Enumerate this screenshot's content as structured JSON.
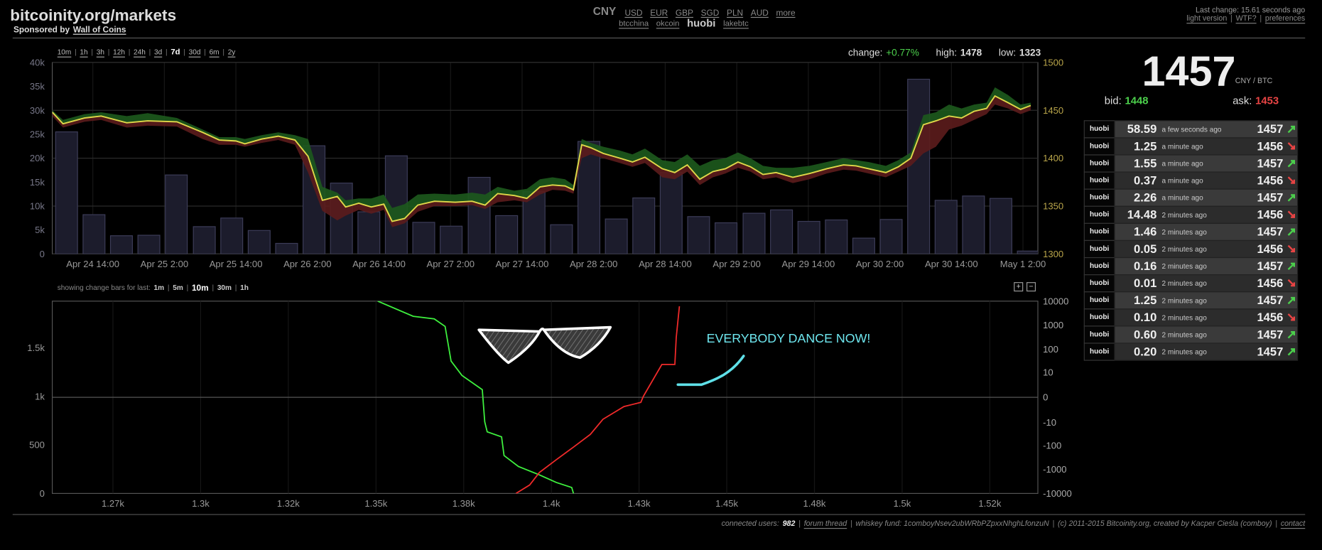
{
  "header": {
    "title": "bitcoinity.org/markets",
    "sponsored_by": "Sponsored by",
    "sponsor": "Wall of Coins",
    "currency": "CNY",
    "currencies": [
      "USD",
      "EUR",
      "GBP",
      "SGD",
      "PLN",
      "AUD",
      "more"
    ],
    "exchanges": [
      "btcchina",
      "okcoin",
      "huobi",
      "lakebtc"
    ],
    "active_exchange": 2,
    "last_change": "Last change: 15.61 seconds ago",
    "links": [
      "light version",
      "WTF?",
      "preferences"
    ],
    "separator": "|"
  },
  "ranges": {
    "options": [
      "10m",
      "1h",
      "3h",
      "12h",
      "24h",
      "3d",
      "7d",
      "30d",
      "6m",
      "2y"
    ],
    "active": 6
  },
  "stats": {
    "change_label": "change:",
    "change": "+0.77%",
    "high_label": "high:",
    "high": "1478",
    "low_label": "low:",
    "low": "1323"
  },
  "ticker": {
    "price": "1457",
    "unit": "CNY / BTC",
    "bid_label": "bid:",
    "bid": "1448",
    "ask_label": "ask:",
    "ask": "1453"
  },
  "trades": [
    {
      "exchange": "huobi",
      "amount": "58.59",
      "time": "a few seconds ago",
      "price": "1457",
      "direction": "up"
    },
    {
      "exchange": "huobi",
      "amount": "1.25",
      "time": "a minute ago",
      "price": "1456",
      "direction": "down"
    },
    {
      "exchange": "huobi",
      "amount": "1.55",
      "time": "a minute ago",
      "price": "1457",
      "direction": "up"
    },
    {
      "exchange": "huobi",
      "amount": "0.37",
      "time": "a minute ago",
      "price": "1456",
      "direction": "down"
    },
    {
      "exchange": "huobi",
      "amount": "2.26",
      "time": "a minute ago",
      "price": "1457",
      "direction": "up"
    },
    {
      "exchange": "huobi",
      "amount": "14.48",
      "time": "2 minutes ago",
      "price": "1456",
      "direction": "down"
    },
    {
      "exchange": "huobi",
      "amount": "1.46",
      "time": "2 minutes ago",
      "price": "1457",
      "direction": "up"
    },
    {
      "exchange": "huobi",
      "amount": "0.05",
      "time": "2 minutes ago",
      "price": "1456",
      "direction": "down"
    },
    {
      "exchange": "huobi",
      "amount": "0.16",
      "time": "2 minutes ago",
      "price": "1457",
      "direction": "up"
    },
    {
      "exchange": "huobi",
      "amount": "0.01",
      "time": "2 minutes ago",
      "price": "1456",
      "direction": "down"
    },
    {
      "exchange": "huobi",
      "amount": "1.25",
      "time": "2 minutes ago",
      "price": "1457",
      "direction": "up"
    },
    {
      "exchange": "huobi",
      "amount": "0.10",
      "time": "2 minutes ago",
      "price": "1456",
      "direction": "down"
    },
    {
      "exchange": "huobi",
      "amount": "0.60",
      "time": "2 minutes ago",
      "price": "1457",
      "direction": "up"
    },
    {
      "exchange": "huobi",
      "amount": "0.20",
      "time": "2 minutes ago",
      "price": "1457",
      "direction": "up"
    }
  ],
  "chart_data": [
    {
      "type": "combo",
      "grid": true,
      "xlim": [
        7.2,
        172.5
      ],
      "xticks": [
        {
          "value": 14,
          "label": "Apr 24 14:00"
        },
        {
          "value": 26,
          "label": "Apr 25 2:00"
        },
        {
          "value": 38,
          "label": "Apr 25 14:00"
        },
        {
          "value": 50,
          "label": "Apr 26 2:00"
        },
        {
          "value": 62,
          "label": "Apr 26 14:00"
        },
        {
          "value": 74,
          "label": "Apr 27 2:00"
        },
        {
          "value": 86,
          "label": "Apr 27 14:00"
        },
        {
          "value": 98,
          "label": "Apr 28 2:00"
        },
        {
          "value": 110,
          "label": "Apr 28 14:00"
        },
        {
          "value": 122,
          "label": "Apr 29 2:00"
        },
        {
          "value": 134,
          "label": "Apr 29 14:00"
        },
        {
          "value": 146,
          "label": "Apr 30 2:00"
        },
        {
          "value": 158,
          "label": "Apr 30 14:00"
        },
        {
          "value": 170,
          "label": "May 1 2:00"
        }
      ],
      "ylim": [
        0,
        40000
      ],
      "yticks": [
        0,
        {
          "value": 5000,
          "label": "5k"
        },
        {
          "value": 10000,
          "label": "10k"
        },
        {
          "value": 15000,
          "label": "15k"
        },
        {
          "value": 20000,
          "label": "20k"
        },
        {
          "value": 25000,
          "label": "25k"
        },
        {
          "value": 30000,
          "label": "30k"
        },
        {
          "value": 35000,
          "label": "35k"
        },
        {
          "value": 40000,
          "label": "40k"
        }
      ],
      "y2lim": [
        1300,
        1500
      ],
      "y2ticks": [
        1300,
        1350,
        1400,
        1450,
        1500
      ],
      "x": [
        7.2,
        9.0,
        12.6,
        15.4,
        19.7,
        23.2,
        28.1,
        32.4,
        35.2,
        38.0,
        39.5,
        42.3,
        45.1,
        47.9,
        50.1,
        52.5,
        55.0,
        56.4,
        58.6,
        60.7,
        62.8,
        64.2,
        66.3,
        68.5,
        71.3,
        74.8,
        77.6,
        79.8,
        81.9,
        84.7,
        86.8,
        89.0,
        91.1,
        93.2,
        94.6,
        96.0,
        97.5,
        99.6,
        102.4,
        104.5,
        106.6,
        109.5,
        111.6,
        113.7,
        115.8,
        118.0,
        120.1,
        122.2,
        124.3,
        126.4,
        128.6,
        131.4,
        134.2,
        137.1,
        139.9,
        142.0,
        144.1,
        147.0,
        149.1,
        151.2,
        153.3,
        155.4,
        157.6,
        159.7,
        161.8,
        163.9,
        165.3,
        167.5,
        169.6,
        171.3
      ],
      "series": [
        {
          "type": "bar",
          "color": "#1c1c2c",
          "x": [
            9.6,
            14.2,
            18.8,
            23.4,
            28.0,
            32.7,
            37.3,
            41.9,
            46.5,
            51.1,
            55.7,
            60.3,
            64.9,
            69.5,
            74.1,
            78.8,
            83.4,
            88.0,
            92.6,
            97.2,
            101.8,
            106.4,
            111.0,
            115.6,
            120.2,
            124.9,
            129.5,
            134.1,
            138.7,
            143.3,
            147.9,
            152.5,
            157.1,
            161.7,
            166.3,
            170.9
          ],
          "values": [
            25500,
            8200,
            3800,
            3900,
            16500,
            5700,
            7500,
            4900,
            2200,
            22600,
            14800,
            8800,
            20500,
            6600,
            5800,
            16000,
            8000,
            13000,
            6100,
            23500,
            7300,
            11700,
            17000,
            7800,
            6500,
            8500,
            9200,
            6800,
            7100,
            3300,
            7200,
            36500,
            11200,
            12100,
            11600,
            600
          ]
        },
        {
          "type": "band",
          "axis": "y2",
          "color": "#1d5a1d",
          "values": [
            1450,
            1440,
            1446,
            1448,
            1444,
            1447,
            1442,
            1430,
            1422,
            1422,
            1420,
            1424,
            1427,
            1424,
            1420,
            1370,
            1364,
            1356,
            1358,
            1358,
            1362,
            1348,
            1352,
            1362,
            1363,
            1362,
            1364,
            1362,
            1370,
            1366,
            1368,
            1378,
            1380,
            1378,
            1372,
            1420,
            1416,
            1412,
            1408,
            1404,
            1410,
            1398,
            1396,
            1404,
            1392,
            1398,
            1400,
            1406,
            1400,
            1392,
            1390,
            1390,
            1392,
            1396,
            1400,
            1398,
            1396,
            1392,
            1398,
            1406,
            1445,
            1448,
            1456,
            1452,
            1456,
            1458,
            1474,
            1466,
            1456,
            1458
          ]
        },
        {
          "type": "band",
          "axis": "y2",
          "color": "#5c1c1c",
          "values": [
            1444,
            1432,
            1438,
            1440,
            1432,
            1434,
            1433,
            1420,
            1414,
            1414,
            1412,
            1416,
            1419,
            1414,
            1385,
            1345,
            1335,
            1340,
            1346,
            1342,
            1346,
            1328,
            1332,
            1344,
            1350,
            1350,
            1351,
            1347,
            1354,
            1356,
            1354,
            1362,
            1367,
            1366,
            1363,
            1400,
            1404,
            1400,
            1395,
            1391,
            1395,
            1380,
            1378,
            1386,
            1372,
            1380,
            1384,
            1390,
            1386,
            1378,
            1380,
            1374,
            1378,
            1384,
            1388,
            1387,
            1384,
            1380,
            1386,
            1392,
            1405,
            1412,
            1430,
            1434,
            1440,
            1446,
            1456,
            1452,
            1446,
            1450
          ]
        },
        {
          "type": "line",
          "axis": "y2",
          "color": "#e0d84a",
          "values": [
            1448,
            1436,
            1442,
            1444,
            1437,
            1439,
            1438,
            1427,
            1419,
            1418,
            1415,
            1420,
            1423,
            1419,
            1402,
            1356,
            1360,
            1349,
            1353,
            1349,
            1352,
            1334,
            1337,
            1351,
            1355,
            1354,
            1355,
            1351,
            1363,
            1361,
            1358,
            1370,
            1372,
            1371,
            1367,
            1414,
            1411,
            1405,
            1400,
            1396,
            1401,
            1389,
            1385,
            1393,
            1378,
            1386,
            1389,
            1396,
            1391,
            1383,
            1385,
            1380,
            1384,
            1389,
            1393,
            1392,
            1389,
            1385,
            1391,
            1400,
            1435,
            1439,
            1444,
            1442,
            1449,
            1452,
            1465,
            1458,
            1451,
            1455
          ]
        }
      ]
    },
    {
      "type": "depth",
      "grid": true,
      "zero_line": true,
      "y2scale": "symlog",
      "xlim": [
        1257.7,
        1538.7
      ],
      "xticks": [
        {
          "value": 1275,
          "label": "1.27k"
        },
        {
          "value": 1300,
          "label": "1.3k"
        },
        {
          "value": 1325,
          "label": "1.32k"
        },
        {
          "value": 1350,
          "label": "1.35k"
        },
        {
          "value": 1375,
          "label": "1.38k"
        },
        {
          "value": 1400,
          "label": "1.4k"
        },
        {
          "value": 1425,
          "label": "1.43k"
        },
        {
          "value": 1450,
          "label": "1.45k"
        },
        {
          "value": 1475,
          "label": "1.48k"
        },
        {
          "value": 1500,
          "label": "1.5k"
        },
        {
          "value": 1525,
          "label": "1.52k"
        }
      ],
      "ylim": [
        0,
        1983
      ],
      "yticks": [
        0,
        500,
        {
          "value": 1000,
          "label": "1k"
        },
        {
          "value": 1500,
          "label": "1.5k"
        }
      ],
      "y2lim": [
        -10000,
        10000
      ],
      "y2ticks": [
        -10000,
        -1000,
        -100,
        -10,
        0,
        10,
        100,
        1000,
        10000
      ],
      "annotation": "EVERYBODY DANCE NOW!",
      "series": [
        {
          "type": "line",
          "color": "#3ef03e",
          "x": [
            1350.5,
            1360.6,
            1366.6,
            1369.7,
            1371.4,
            1374.5,
            1380.3,
            1381.0,
            1381.7,
            1385.8,
            1386.5,
            1390.6,
            1396.6,
            1401.4,
            1405.8,
            1406.3
          ],
          "values": [
            1983,
            1827,
            1800,
            1722,
            1365,
            1217,
            1070,
            739,
            635,
            583,
            391,
            278,
            191,
            113,
            61,
            0
          ]
        },
        {
          "type": "line",
          "color": "#f02a2a",
          "x": [
            1389.9,
            1393.8,
            1396.6,
            1401.4,
            1406.3,
            1411.1,
            1414.7,
            1420.7,
            1425.5,
            1426.2,
            1431.5,
            1435.2,
            1435.6,
            1436.5
          ],
          "values": [
            0,
            87,
            217,
            348,
            478,
            609,
            765,
            896,
            939,
            1000,
            1330,
            1330,
            1609,
            1930
          ]
        }
      ]
    }
  ],
  "change_bars": {
    "label": "showing change bars for last:",
    "options": [
      "1m",
      "5m",
      "10m",
      "30m",
      "1h"
    ],
    "active": 2
  },
  "zoom": [
    "+",
    "−"
  ],
  "footer": {
    "users_label": "connected users:",
    "users": "982",
    "forum": "forum thread",
    "whiskey": "whiskey fund: 1comboyNsev2ubWRbPZpxxNhghLfonzuN",
    "copyright": "(c) 2011-2015 Bitcoinity.org, created by Kacper Cieśla (comboy)",
    "contact": "contact"
  }
}
